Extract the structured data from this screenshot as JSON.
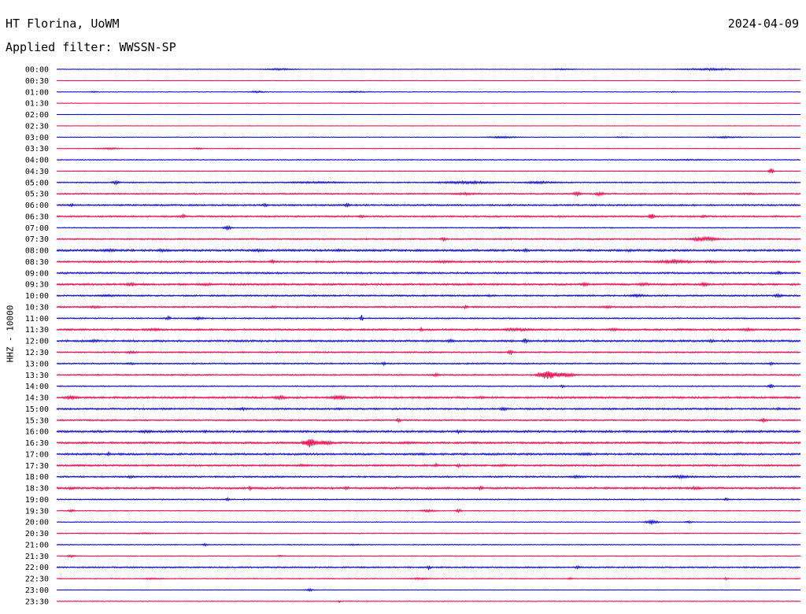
{
  "chart_data": {
    "type": "line",
    "title": "HT Florina, UoWM",
    "date": "2024-04-09",
    "subtitle": "Applied filter: WWSSN-SP",
    "ylabel": "HHZ - 10000",
    "trace_colors": [
      "#0000cc",
      "#ee0044"
    ],
    "rows": [
      {
        "label": "00:00",
        "color": "#0000cc",
        "noise": 0.3,
        "events": [
          {
            "x": 0.3,
            "amp": 1.2,
            "w": 0.04
          },
          {
            "x": 0.68,
            "amp": 1.0,
            "w": 0.03
          },
          {
            "x": 0.88,
            "amp": 1.4,
            "w": 0.07
          }
        ]
      },
      {
        "label": "00:30",
        "color": "#ee0044",
        "noise": 0.2,
        "events": []
      },
      {
        "label": "01:00",
        "color": "#0000cc",
        "noise": 0.3,
        "events": [
          {
            "x": 0.05,
            "amp": 0.8,
            "w": 0.01
          },
          {
            "x": 0.27,
            "amp": 1.2,
            "w": 0.02
          },
          {
            "x": 0.4,
            "amp": 0.9,
            "w": 0.05
          },
          {
            "x": 0.83,
            "amp": 0.8,
            "w": 0.01
          }
        ]
      },
      {
        "label": "01:30",
        "color": "#ee0044",
        "noise": 0.2,
        "events": []
      },
      {
        "label": "02:00",
        "color": "#0000cc",
        "noise": 0.2,
        "events": []
      },
      {
        "label": "02:30",
        "color": "#ee0044",
        "noise": 0.2,
        "events": []
      },
      {
        "label": "03:00",
        "color": "#0000cc",
        "noise": 0.3,
        "events": [
          {
            "x": 0.6,
            "amp": 1.2,
            "w": 0.04
          },
          {
            "x": 0.76,
            "amp": 0.9,
            "w": 0.02
          },
          {
            "x": 0.9,
            "amp": 1.1,
            "w": 0.05
          }
        ]
      },
      {
        "label": "03:30",
        "color": "#ee0044",
        "noise": 0.3,
        "events": [
          {
            "x": 0.07,
            "amp": 1.2,
            "w": 0.03
          },
          {
            "x": 0.19,
            "amp": 1.0,
            "w": 0.02
          },
          {
            "x": 0.24,
            "amp": 0.8,
            "w": 0.02
          }
        ]
      },
      {
        "label": "04:00",
        "color": "#0000cc",
        "noise": 0.5,
        "events": [
          {
            "x": 0.55,
            "amp": 0.8,
            "w": 0.06
          },
          {
            "x": 0.85,
            "amp": 0.9,
            "w": 0.08
          }
        ]
      },
      {
        "label": "04:30",
        "color": "#ee0044",
        "noise": 0.4,
        "events": [
          {
            "x": 0.96,
            "amp": 4.0,
            "w": 0.006
          }
        ]
      },
      {
        "label": "05:00",
        "color": "#0000cc",
        "noise": 0.7,
        "events": [
          {
            "x": 0.08,
            "amp": 2.5,
            "w": 0.01
          },
          {
            "x": 0.35,
            "amp": 1.4,
            "w": 0.08
          },
          {
            "x": 0.55,
            "amp": 1.8,
            "w": 0.08
          },
          {
            "x": 0.65,
            "amp": 1.6,
            "w": 0.05
          }
        ]
      },
      {
        "label": "05:30",
        "color": "#ee0044",
        "noise": 0.8,
        "events": [
          {
            "x": 0.55,
            "amp": 1.6,
            "w": 0.04
          },
          {
            "x": 0.7,
            "amp": 2.8,
            "w": 0.01
          },
          {
            "x": 0.73,
            "amp": 3.0,
            "w": 0.01
          },
          {
            "x": 0.93,
            "amp": 1.2,
            "w": 0.05
          }
        ]
      },
      {
        "label": "06:00",
        "color": "#0000cc",
        "noise": 0.9,
        "events": [
          {
            "x": 0.02,
            "amp": 2.0,
            "w": 0.006
          },
          {
            "x": 0.28,
            "amp": 2.2,
            "w": 0.008
          },
          {
            "x": 0.39,
            "amp": 2.4,
            "w": 0.008
          }
        ]
      },
      {
        "label": "06:30",
        "color": "#ee0044",
        "noise": 0.9,
        "events": [
          {
            "x": 0.17,
            "amp": 2.4,
            "w": 0.008
          },
          {
            "x": 0.41,
            "amp": 2.2,
            "w": 0.008
          },
          {
            "x": 0.8,
            "amp": 5.0,
            "w": 0.006
          },
          {
            "x": 0.87,
            "amp": 2.0,
            "w": 0.01
          }
        ]
      },
      {
        "label": "07:00",
        "color": "#0000cc",
        "noise": 0.5,
        "events": [
          {
            "x": 0.23,
            "amp": 2.6,
            "w": 0.01
          },
          {
            "x": 0.6,
            "amp": 1.0,
            "w": 0.05
          }
        ]
      },
      {
        "label": "07:30",
        "color": "#ee0044",
        "noise": 0.8,
        "events": [
          {
            "x": 0.52,
            "amp": 2.2,
            "w": 0.01
          },
          {
            "x": 0.87,
            "amp": 2.6,
            "w": 0.04
          }
        ]
      },
      {
        "label": "08:00",
        "color": "#0000cc",
        "noise": 1.2,
        "events": [
          {
            "x": 0.07,
            "amp": 2.0,
            "w": 0.02
          },
          {
            "x": 0.14,
            "amp": 2.0,
            "w": 0.01
          },
          {
            "x": 0.27,
            "amp": 1.8,
            "w": 0.02
          },
          {
            "x": 0.38,
            "amp": 2.2,
            "w": 0.01
          },
          {
            "x": 0.63,
            "amp": 2.0,
            "w": 0.01
          },
          {
            "x": 0.77,
            "amp": 1.8,
            "w": 0.01
          }
        ]
      },
      {
        "label": "08:30",
        "color": "#ee0044",
        "noise": 1.0,
        "events": [
          {
            "x": 0.29,
            "amp": 3.0,
            "w": 0.006
          },
          {
            "x": 0.52,
            "amp": 1.6,
            "w": 0.04
          },
          {
            "x": 0.83,
            "amp": 2.4,
            "w": 0.05
          },
          {
            "x": 0.88,
            "amp": 1.8,
            "w": 0.03
          }
        ]
      },
      {
        "label": "09:00",
        "color": "#0000cc",
        "noise": 1.0,
        "events": [
          {
            "x": 0.49,
            "amp": 1.6,
            "w": 0.01
          },
          {
            "x": 0.97,
            "amp": 2.4,
            "w": 0.01
          }
        ]
      },
      {
        "label": "09:30",
        "color": "#ee0044",
        "noise": 1.1,
        "events": [
          {
            "x": 0.1,
            "amp": 2.0,
            "w": 0.02
          },
          {
            "x": 0.2,
            "amp": 2.0,
            "w": 0.02
          },
          {
            "x": 0.71,
            "amp": 2.4,
            "w": 0.01
          },
          {
            "x": 0.79,
            "amp": 2.0,
            "w": 0.02
          },
          {
            "x": 0.87,
            "amp": 2.8,
            "w": 0.01
          }
        ]
      },
      {
        "label": "10:00",
        "color": "#0000cc",
        "noise": 0.9,
        "events": [
          {
            "x": 0.07,
            "amp": 1.4,
            "w": 0.04
          },
          {
            "x": 0.58,
            "amp": 1.6,
            "w": 0.01
          },
          {
            "x": 0.78,
            "amp": 2.0,
            "w": 0.02
          },
          {
            "x": 0.97,
            "amp": 2.4,
            "w": 0.01
          }
        ]
      },
      {
        "label": "10:30",
        "color": "#ee0044",
        "noise": 0.9,
        "events": [
          {
            "x": 0.05,
            "amp": 1.6,
            "w": 0.02
          },
          {
            "x": 0.29,
            "amp": 1.8,
            "w": 0.01
          },
          {
            "x": 0.55,
            "amp": 2.6,
            "w": 0.005
          },
          {
            "x": 0.74,
            "amp": 1.6,
            "w": 0.02
          }
        ]
      },
      {
        "label": "11:00",
        "color": "#0000cc",
        "noise": 0.7,
        "events": [
          {
            "x": 0.15,
            "amp": 3.0,
            "w": 0.006
          },
          {
            "x": 0.19,
            "amp": 1.6,
            "w": 0.02
          },
          {
            "x": 0.41,
            "amp": 5.0,
            "w": 0.003
          }
        ]
      },
      {
        "label": "11:30",
        "color": "#ee0044",
        "noise": 1.0,
        "events": [
          {
            "x": 0.13,
            "amp": 1.8,
            "w": 0.03
          },
          {
            "x": 0.49,
            "amp": 2.4,
            "w": 0.006
          },
          {
            "x": 0.62,
            "amp": 2.0,
            "w": 0.05
          },
          {
            "x": 0.75,
            "amp": 1.6,
            "w": 0.03
          },
          {
            "x": 0.93,
            "amp": 2.0,
            "w": 0.02
          }
        ]
      },
      {
        "label": "12:00",
        "color": "#0000cc",
        "noise": 1.1,
        "events": [
          {
            "x": 0.05,
            "amp": 1.8,
            "w": 0.02
          },
          {
            "x": 0.53,
            "amp": 2.6,
            "w": 0.008
          },
          {
            "x": 0.63,
            "amp": 3.4,
            "w": 0.006
          },
          {
            "x": 0.88,
            "amp": 2.0,
            "w": 0.01
          }
        ]
      },
      {
        "label": "12:30",
        "color": "#ee0044",
        "noise": 0.8,
        "events": [
          {
            "x": 0.1,
            "amp": 1.6,
            "w": 0.02
          },
          {
            "x": 0.25,
            "amp": 1.2,
            "w": 0.01
          },
          {
            "x": 0.61,
            "amp": 3.0,
            "w": 0.006
          }
        ]
      },
      {
        "label": "13:00",
        "color": "#0000cc",
        "noise": 0.8,
        "events": [
          {
            "x": 0.1,
            "amp": 1.4,
            "w": 0.02
          },
          {
            "x": 0.44,
            "amp": 2.2,
            "w": 0.006
          },
          {
            "x": 0.96,
            "amp": 2.4,
            "w": 0.006
          }
        ]
      },
      {
        "label": "13:30",
        "color": "#ee0044",
        "noise": 0.8,
        "events": [
          {
            "x": 0.51,
            "amp": 2.2,
            "w": 0.01
          },
          {
            "x": 0.66,
            "amp": 6.5,
            "w": 0.02
          },
          {
            "x": 0.68,
            "amp": 3.0,
            "w": 0.03
          }
        ]
      },
      {
        "label": "14:00",
        "color": "#0000cc",
        "noise": 0.6,
        "events": [
          {
            "x": 0.68,
            "amp": 1.8,
            "w": 0.006
          },
          {
            "x": 0.96,
            "amp": 3.0,
            "w": 0.006
          }
        ]
      },
      {
        "label": "14:30",
        "color": "#ee0044",
        "noise": 1.1,
        "events": [
          {
            "x": 0.02,
            "amp": 2.4,
            "w": 0.02
          },
          {
            "x": 0.3,
            "amp": 2.4,
            "w": 0.02
          },
          {
            "x": 0.38,
            "amp": 3.0,
            "w": 0.02
          },
          {
            "x": 0.57,
            "amp": 1.6,
            "w": 0.02
          }
        ]
      },
      {
        "label": "15:00",
        "color": "#0000cc",
        "noise": 1.0,
        "events": [
          {
            "x": 0.25,
            "amp": 2.0,
            "w": 0.01
          },
          {
            "x": 0.38,
            "amp": 2.0,
            "w": 0.01
          },
          {
            "x": 0.6,
            "amp": 2.4,
            "w": 0.01
          },
          {
            "x": 0.97,
            "amp": 2.0,
            "w": 0.006
          }
        ]
      },
      {
        "label": "15:30",
        "color": "#ee0044",
        "noise": 0.8,
        "events": [
          {
            "x": 0.46,
            "amp": 2.6,
            "w": 0.006
          },
          {
            "x": 0.95,
            "amp": 2.6,
            "w": 0.01
          }
        ]
      },
      {
        "label": "16:00",
        "color": "#0000cc",
        "noise": 1.2,
        "events": [
          {
            "x": 0.12,
            "amp": 1.8,
            "w": 0.02
          },
          {
            "x": 0.2,
            "amp": 1.8,
            "w": 0.01
          },
          {
            "x": 0.54,
            "amp": 2.2,
            "w": 0.006
          }
        ]
      },
      {
        "label": "16:30",
        "color": "#ee0044",
        "noise": 1.1,
        "events": [
          {
            "x": 0.34,
            "amp": 6.0,
            "w": 0.015
          },
          {
            "x": 0.36,
            "amp": 3.0,
            "w": 0.02
          },
          {
            "x": 0.47,
            "amp": 1.6,
            "w": 0.02
          }
        ]
      },
      {
        "label": "17:00",
        "color": "#0000cc",
        "noise": 1.1,
        "events": [
          {
            "x": 0.07,
            "amp": 2.4,
            "w": 0.006
          },
          {
            "x": 0.49,
            "amp": 2.0,
            "w": 0.01
          },
          {
            "x": 0.71,
            "amp": 2.0,
            "w": 0.02
          }
        ]
      },
      {
        "label": "17:30",
        "color": "#ee0044",
        "noise": 1.0,
        "events": [
          {
            "x": 0.33,
            "amp": 2.0,
            "w": 0.02
          },
          {
            "x": 0.51,
            "amp": 3.0,
            "w": 0.005
          },
          {
            "x": 0.54,
            "amp": 2.4,
            "w": 0.006
          },
          {
            "x": 0.6,
            "amp": 1.8,
            "w": 0.01
          }
        ]
      },
      {
        "label": "18:00",
        "color": "#0000cc",
        "noise": 0.9,
        "events": [
          {
            "x": 0.1,
            "amp": 1.8,
            "w": 0.01
          },
          {
            "x": 0.7,
            "amp": 2.0,
            "w": 0.02
          },
          {
            "x": 0.84,
            "amp": 1.8,
            "w": 0.04
          }
        ]
      },
      {
        "label": "18:30",
        "color": "#ee0044",
        "noise": 1.1,
        "events": [
          {
            "x": 0.02,
            "amp": 2.2,
            "w": 0.01
          },
          {
            "x": 0.26,
            "amp": 2.6,
            "w": 0.005
          },
          {
            "x": 0.39,
            "amp": 2.0,
            "w": 0.01
          },
          {
            "x": 0.57,
            "amp": 2.6,
            "w": 0.006
          },
          {
            "x": 0.86,
            "amp": 2.0,
            "w": 0.02
          }
        ]
      },
      {
        "label": "19:00",
        "color": "#0000cc",
        "noise": 0.6,
        "events": [
          {
            "x": 0.23,
            "amp": 2.0,
            "w": 0.005
          },
          {
            "x": 0.9,
            "amp": 1.8,
            "w": 0.006
          }
        ]
      },
      {
        "label": "19:30",
        "color": "#ee0044",
        "noise": 0.5,
        "events": [
          {
            "x": 0.02,
            "amp": 2.0,
            "w": 0.008
          },
          {
            "x": 0.5,
            "amp": 1.6,
            "w": 0.02
          },
          {
            "x": 0.54,
            "amp": 2.0,
            "w": 0.008
          }
        ]
      },
      {
        "label": "20:00",
        "color": "#0000cc",
        "noise": 0.4,
        "events": [
          {
            "x": 0.8,
            "amp": 2.4,
            "w": 0.015
          },
          {
            "x": 0.85,
            "amp": 1.6,
            "w": 0.01
          }
        ]
      },
      {
        "label": "20:30",
        "color": "#ee0044",
        "noise": 0.5,
        "events": [
          {
            "x": 0.12,
            "amp": 0.9,
            "w": 0.05
          }
        ]
      },
      {
        "label": "21:00",
        "color": "#0000cc",
        "noise": 0.5,
        "events": [
          {
            "x": 0.2,
            "amp": 1.6,
            "w": 0.008
          },
          {
            "x": 0.4,
            "amp": 1.0,
            "w": 0.03
          }
        ]
      },
      {
        "label": "21:30",
        "color": "#ee0044",
        "noise": 0.4,
        "events": [
          {
            "x": 0.02,
            "amp": 2.0,
            "w": 0.008
          },
          {
            "x": 0.3,
            "amp": 0.9,
            "w": 0.02
          }
        ]
      },
      {
        "label": "22:00",
        "color": "#0000cc",
        "noise": 0.8,
        "events": [
          {
            "x": 0.5,
            "amp": 2.6,
            "w": 0.005
          },
          {
            "x": 0.7,
            "amp": 2.4,
            "w": 0.006
          }
        ]
      },
      {
        "label": "22:30",
        "color": "#ee0044",
        "noise": 0.5,
        "events": [
          {
            "x": 0.13,
            "amp": 1.0,
            "w": 0.04
          },
          {
            "x": 0.49,
            "amp": 1.2,
            "w": 0.04
          },
          {
            "x": 0.69,
            "amp": 2.0,
            "w": 0.006
          },
          {
            "x": 0.9,
            "amp": 1.6,
            "w": 0.006
          }
        ]
      },
      {
        "label": "23:00",
        "color": "#0000cc",
        "noise": 0.3,
        "events": [
          {
            "x": 0.34,
            "amp": 1.6,
            "w": 0.01
          }
        ]
      },
      {
        "label": "23:30",
        "color": "#ee0044",
        "noise": 0.4,
        "events": [
          {
            "x": 0.38,
            "amp": 1.6,
            "w": 0.004
          }
        ]
      }
    ]
  }
}
